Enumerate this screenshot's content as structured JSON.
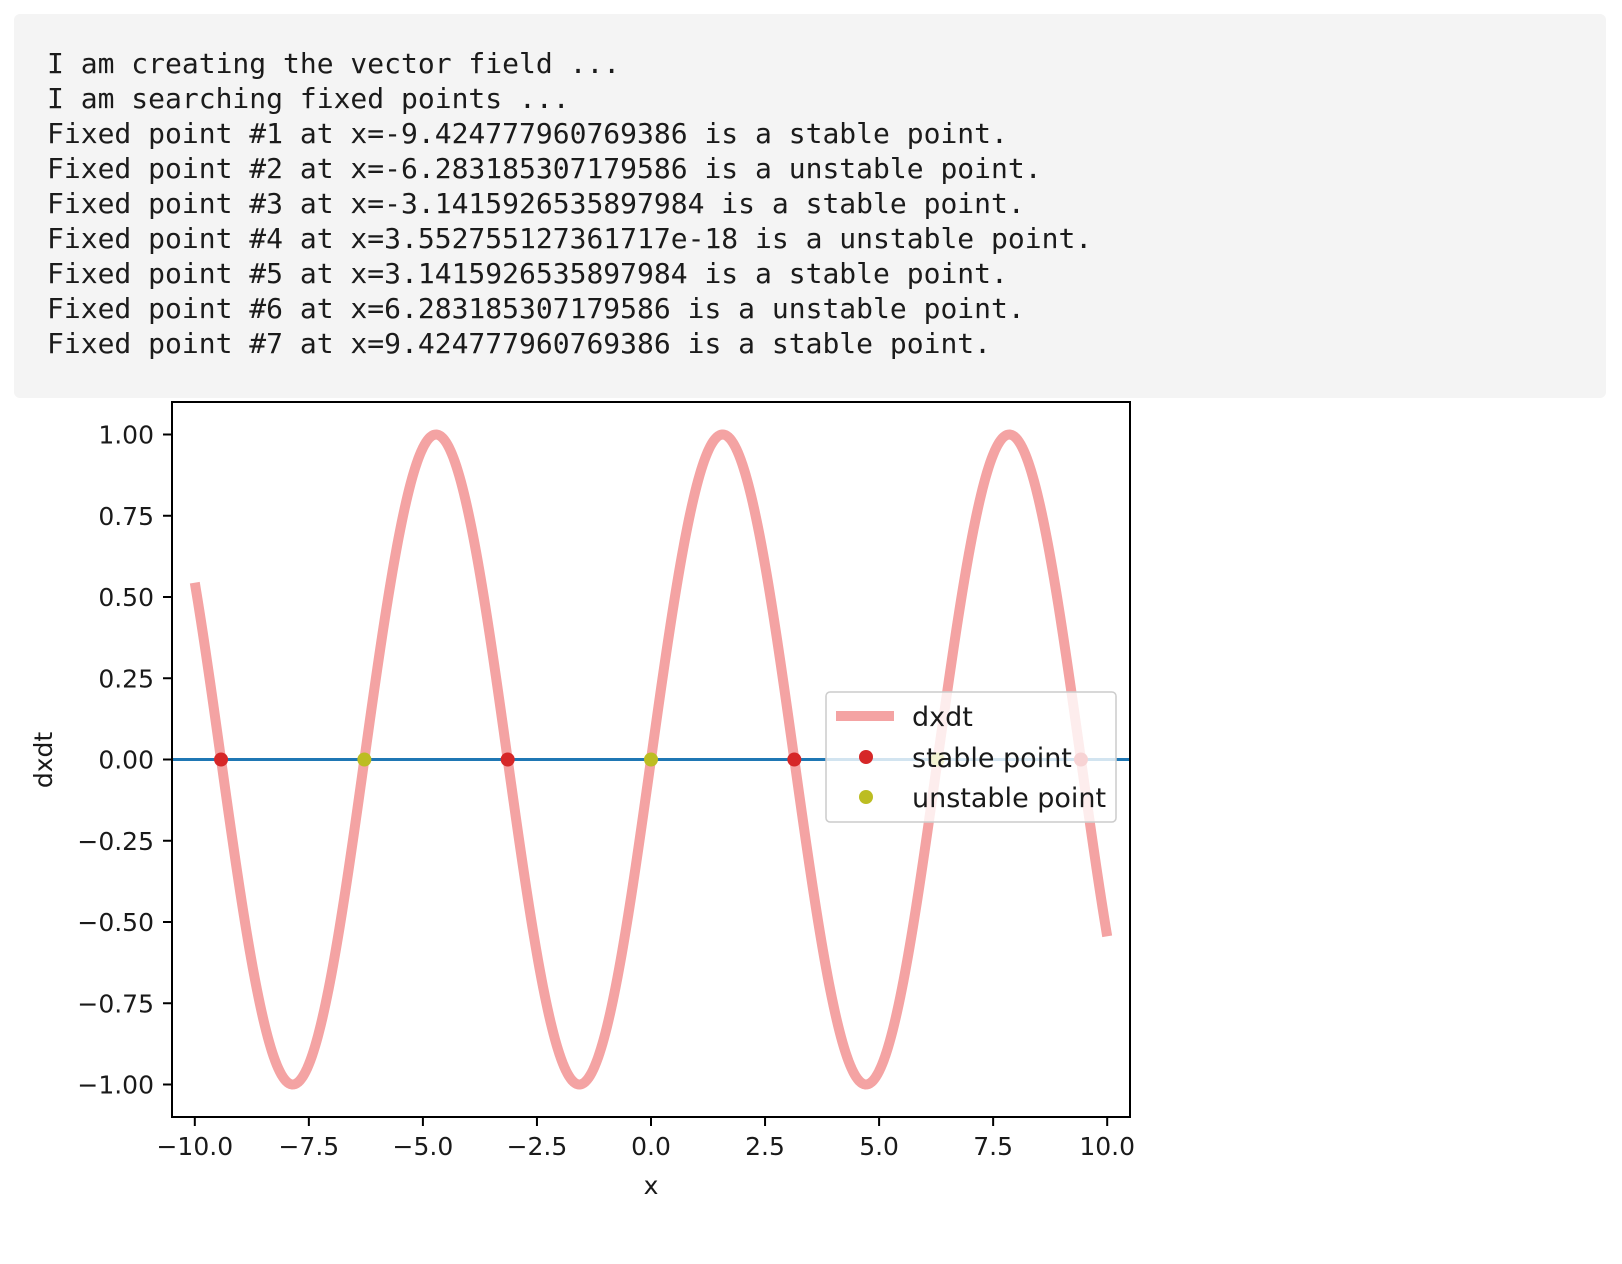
{
  "output": {
    "lines": [
      "I am creating the vector field ...",
      "I am searching fixed points ...",
      "Fixed point #1 at x=-9.424777960769386 is a stable point.",
      "Fixed point #2 at x=-6.283185307179586 is a unstable point.",
      "Fixed point #3 at x=-3.1415926535897984 is a stable point.",
      "Fixed point #4 at x=3.552755127361717e-18 is a unstable point.",
      "Fixed point #5 at x=3.1415926535897984 is a stable point.",
      "Fixed point #6 at x=6.283185307179586 is a unstable point.",
      "Fixed point #7 at x=9.424777960769386 is a stable point."
    ]
  },
  "chart_data": {
    "type": "line",
    "title": "",
    "xlabel": "x",
    "ylabel": "dxdt",
    "xlim": [
      -10.5,
      10.5
    ],
    "ylim": [
      -1.1,
      1.1
    ],
    "xticks": [
      -10.0,
      -7.5,
      -5.0,
      -2.5,
      0.0,
      2.5,
      5.0,
      7.5,
      10.0
    ],
    "xtick_labels": [
      "−10.0",
      "−7.5",
      "−5.0",
      "−2.5",
      "0.0",
      "2.5",
      "5.0",
      "7.5",
      "10.0"
    ],
    "yticks": [
      1.0,
      0.75,
      0.5,
      0.25,
      0.0,
      -0.25,
      -0.5,
      -0.75,
      -1.0
    ],
    "ytick_labels": [
      "1.00",
      "0.75",
      "0.50",
      "0.25",
      "0.00",
      "−0.25",
      "−0.50",
      "−0.75",
      "−1.00"
    ],
    "curve": {
      "name": "dxdt",
      "function": "sin(x)",
      "x_range": [
        -10,
        10
      ],
      "color": "#f4a3a3"
    },
    "zero_line": {
      "y": 0,
      "color": "#1f77b4"
    },
    "stable_points": {
      "name": "stable point",
      "color": "#d62728",
      "x": [
        -9.424777960769386,
        -3.1415926535897984,
        3.1415926535897984,
        9.424777960769386
      ],
      "y": [
        0,
        0,
        0,
        0
      ]
    },
    "unstable_points": {
      "name": "unstable point",
      "color": "#bcbd22",
      "x": [
        -6.283185307179586,
        3.552755127361717e-18,
        6.283185307179586
      ],
      "y": [
        0,
        0,
        0
      ]
    },
    "legend": {
      "position": "center-right",
      "entries": [
        "dxdt",
        "stable point",
        "unstable point"
      ]
    },
    "grid": false
  }
}
